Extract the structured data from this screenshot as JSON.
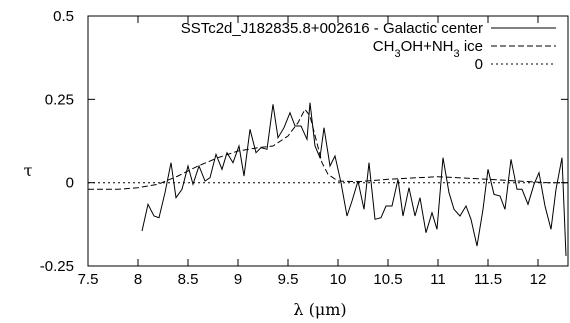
{
  "chart_data": {
    "type": "line",
    "xlabel": "λ (μm)",
    "ylabel": "τ",
    "xlim": [
      7.5,
      12.3
    ],
    "ylim": [
      -0.25,
      0.5
    ],
    "x_ticks": [
      {
        "value": 7.5,
        "label": "7.5"
      },
      {
        "value": 8,
        "label": "8"
      },
      {
        "value": 8.5,
        "label": "8.5"
      },
      {
        "value": 9,
        "label": "9"
      },
      {
        "value": 9.5,
        "label": "9.5"
      },
      {
        "value": 10,
        "label": "10"
      },
      {
        "value": 10.5,
        "label": "10.5"
      },
      {
        "value": 11,
        "label": "11"
      },
      {
        "value": 11.5,
        "label": "11.5"
      },
      {
        "value": 12,
        "label": "12"
      }
    ],
    "y_ticks": [
      {
        "value": -0.25,
        "label": "-0.25"
      },
      {
        "value": 0,
        "label": "0"
      },
      {
        "value": 0.25,
        "label": "0.25"
      },
      {
        "value": 0.5,
        "label": "0.5"
      }
    ],
    "grid": false,
    "legend_position": "top-right",
    "series": [
      {
        "name": "SSTc2d_J182835.8+002616 - Galactic center",
        "style": "solid",
        "color": "#000000",
        "points": [
          [
            8.04,
            -0.145
          ],
          [
            8.1,
            -0.065
          ],
          [
            8.16,
            -0.1
          ],
          [
            8.21,
            -0.105
          ],
          [
            8.27,
            -0.03
          ],
          [
            8.33,
            0.06
          ],
          [
            8.38,
            -0.045
          ],
          [
            8.44,
            -0.02
          ],
          [
            8.5,
            0.05
          ],
          [
            8.55,
            -0.005
          ],
          [
            8.61,
            0.05
          ],
          [
            8.67,
            0.005
          ],
          [
            8.72,
            0.015
          ],
          [
            8.78,
            0.085
          ],
          [
            8.84,
            0.04
          ],
          [
            8.89,
            0.09
          ],
          [
            8.95,
            0.06
          ],
          [
            9.01,
            0.11
          ],
          [
            9.06,
            0.02
          ],
          [
            9.12,
            0.16
          ],
          [
            9.18,
            0.09
          ],
          [
            9.23,
            0.105
          ],
          [
            9.29,
            0.1
          ],
          [
            9.35,
            0.235
          ],
          [
            9.4,
            0.135
          ],
          [
            9.46,
            0.165
          ],
          [
            9.52,
            0.21
          ],
          [
            9.57,
            0.17
          ],
          [
            9.63,
            0.17
          ],
          [
            9.69,
            0.13
          ],
          [
            9.72,
            0.24
          ],
          [
            9.77,
            0.11
          ],
          [
            9.82,
            0.075
          ],
          [
            9.86,
            0.165
          ],
          [
            9.92,
            0.05
          ],
          [
            9.97,
            0.08
          ],
          [
            10.03,
            0.0
          ],
          [
            10.09,
            -0.1
          ],
          [
            10.14,
            -0.055
          ],
          [
            10.2,
            0.005
          ],
          [
            10.26,
            -0.08
          ],
          [
            10.31,
            0.06
          ],
          [
            10.37,
            -0.11
          ],
          [
            10.43,
            -0.105
          ],
          [
            10.48,
            -0.07
          ],
          [
            10.54,
            -0.07
          ],
          [
            10.6,
            0.01
          ],
          [
            10.65,
            -0.1
          ],
          [
            10.71,
            -0.015
          ],
          [
            10.77,
            -0.1
          ],
          [
            10.82,
            -0.045
          ],
          [
            10.88,
            -0.15
          ],
          [
            10.94,
            -0.09
          ],
          [
            10.99,
            -0.14
          ],
          [
            11.05,
            0.075
          ],
          [
            11.11,
            -0.03
          ],
          [
            11.16,
            -0.08
          ],
          [
            11.22,
            -0.1
          ],
          [
            11.28,
            -0.07
          ],
          [
            11.33,
            -0.11
          ],
          [
            11.39,
            -0.19
          ],
          [
            11.45,
            -0.08
          ],
          [
            11.5,
            0.04
          ],
          [
            11.56,
            -0.035
          ],
          [
            11.62,
            -0.04
          ],
          [
            11.67,
            -0.08
          ],
          [
            11.73,
            0.07
          ],
          [
            11.79,
            -0.02
          ],
          [
            11.84,
            -0.02
          ],
          [
            11.9,
            -0.065
          ],
          [
            11.96,
            -0.005
          ],
          [
            12.01,
            0.03
          ],
          [
            12.07,
            -0.07
          ],
          [
            12.13,
            -0.14
          ],
          [
            12.18,
            -0.02
          ],
          [
            12.24,
            0.075
          ],
          [
            12.28,
            -0.22
          ]
        ]
      },
      {
        "name": "CH3OH+NH3 ice",
        "legend_parts": [
          {
            "t": "CH",
            "sub": false
          },
          {
            "t": "3",
            "sub": true
          },
          {
            "t": "OH+NH",
            "sub": false
          },
          {
            "t": "3",
            "sub": true
          },
          {
            "t": " ice",
            "sub": false
          }
        ],
        "style": "dashed",
        "color": "#000000",
        "points": [
          [
            7.5,
            -0.02
          ],
          [
            7.8,
            -0.02
          ],
          [
            8.0,
            -0.015
          ],
          [
            8.2,
            -0.005
          ],
          [
            8.4,
            0.02
          ],
          [
            8.6,
            0.05
          ],
          [
            8.8,
            0.075
          ],
          [
            9.0,
            0.095
          ],
          [
            9.2,
            0.105
          ],
          [
            9.35,
            0.11
          ],
          [
            9.5,
            0.14
          ],
          [
            9.6,
            0.18
          ],
          [
            9.67,
            0.22
          ],
          [
            9.72,
            0.2
          ],
          [
            9.78,
            0.13
          ],
          [
            9.84,
            0.06
          ],
          [
            9.9,
            0.025
          ],
          [
            10.0,
            0.005
          ],
          [
            10.2,
            0.003
          ],
          [
            10.5,
            0.01
          ],
          [
            10.8,
            0.015
          ],
          [
            11.0,
            0.018
          ],
          [
            11.2,
            0.015
          ],
          [
            11.5,
            0.01
          ],
          [
            11.8,
            0.005
          ],
          [
            12.1,
            0.0
          ],
          [
            12.3,
            0.0
          ]
        ]
      },
      {
        "name": "0",
        "style": "dotted",
        "color": "#000000",
        "points": [
          [
            7.5,
            0.0
          ],
          [
            12.3,
            0.0
          ]
        ]
      }
    ]
  }
}
